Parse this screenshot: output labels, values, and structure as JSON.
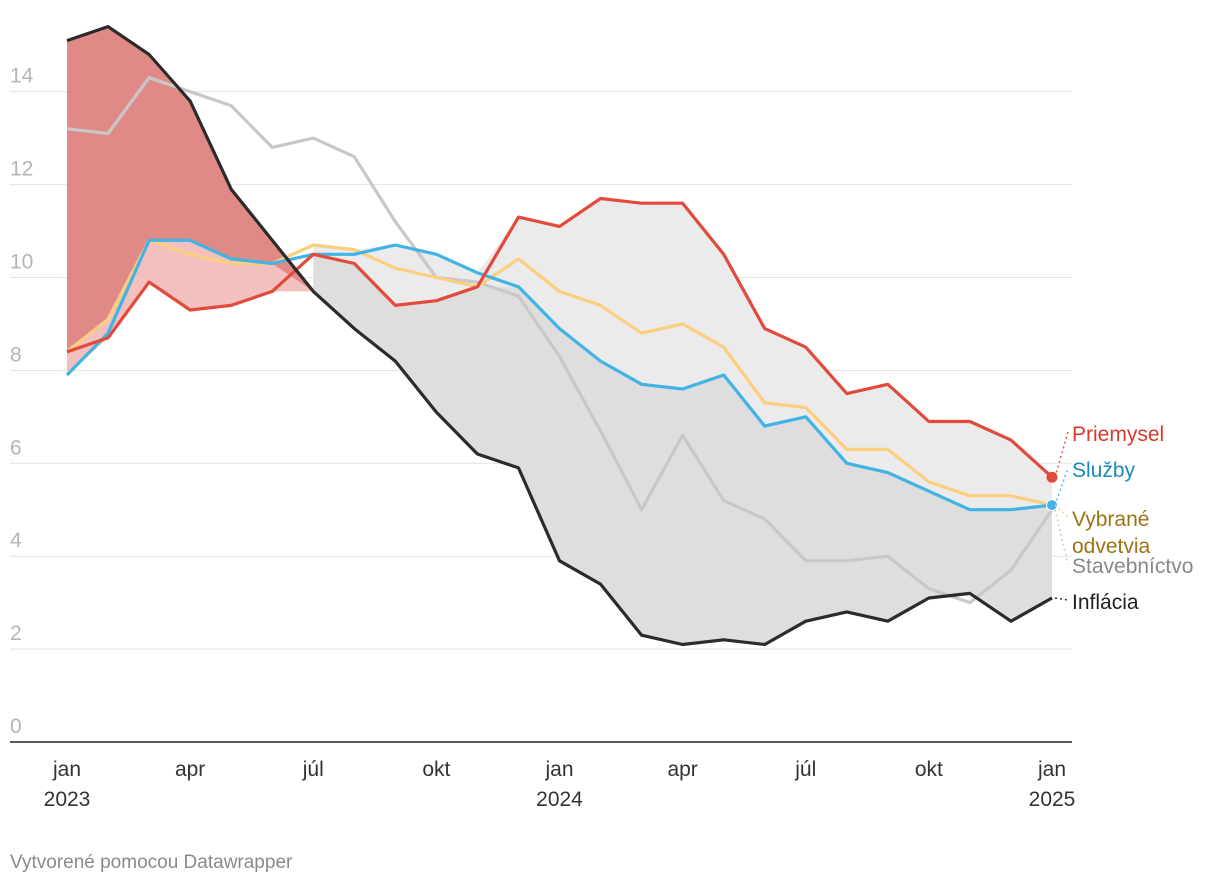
{
  "chart_data": {
    "type": "line",
    "x": [
      "2023-01",
      "2023-02",
      "2023-03",
      "2023-04",
      "2023-05",
      "2023-06",
      "2023-07",
      "2023-08",
      "2023-09",
      "2023-10",
      "2023-11",
      "2023-12",
      "2024-01",
      "2024-02",
      "2024-03",
      "2024-04",
      "2024-05",
      "2024-06",
      "2024-07",
      "2024-08",
      "2024-09",
      "2024-10",
      "2024-11",
      "2024-12",
      "2025-01"
    ],
    "x_tick_labels": [
      {
        "index": 0,
        "label": "jan",
        "year": "2023"
      },
      {
        "index": 3,
        "label": "apr",
        "year": ""
      },
      {
        "index": 6,
        "label": "júl",
        "year": ""
      },
      {
        "index": 9,
        "label": "okt",
        "year": ""
      },
      {
        "index": 12,
        "label": "jan",
        "year": "2024"
      },
      {
        "index": 15,
        "label": "apr",
        "year": ""
      },
      {
        "index": 18,
        "label": "júl",
        "year": ""
      },
      {
        "index": 21,
        "label": "okt",
        "year": ""
      },
      {
        "index": 24,
        "label": "jan",
        "year": "2025"
      }
    ],
    "y_ticks": [
      "0",
      "2",
      "4",
      "6",
      "8",
      "10",
      "12",
      "14"
    ],
    "ylim": [
      0,
      15.5
    ],
    "grid": true,
    "series": [
      {
        "key": "stavebnictvo",
        "name": "Stavebníctvo",
        "color": "#c8c8c8",
        "label_color": "#888888",
        "values": [
          13.2,
          13.1,
          14.3,
          14.0,
          13.7,
          12.8,
          13.0,
          12.6,
          11.2,
          10.0,
          9.9,
          9.6,
          8.3,
          6.7,
          5.0,
          6.6,
          5.2,
          4.8,
          3.9,
          3.9,
          4.0,
          3.3,
          3.0,
          3.7,
          5.0
        ]
      },
      {
        "key": "vybrane",
        "name": "Vybrané odvetvia",
        "color": "#fbcf7d",
        "label_color": "#9b7413",
        "values": [
          8.4,
          9.1,
          10.8,
          10.5,
          10.3,
          10.3,
          10.7,
          10.6,
          10.2,
          10.0,
          9.8,
          10.4,
          9.7,
          9.4,
          8.8,
          9.0,
          8.5,
          7.3,
          7.2,
          6.3,
          6.3,
          5.6,
          5.3,
          5.3,
          5.1
        ]
      },
      {
        "key": "sluzby",
        "name": "Služby",
        "color": "#41b3e4",
        "label_color": "#1a8ab8",
        "values": [
          7.9,
          8.8,
          10.8,
          10.8,
          10.4,
          10.3,
          10.5,
          10.5,
          10.7,
          10.5,
          10.1,
          9.8,
          8.9,
          8.2,
          7.7,
          7.6,
          7.9,
          6.8,
          7.0,
          6.0,
          5.8,
          5.4,
          5.0,
          5.0,
          5.1
        ]
      },
      {
        "key": "priemysel",
        "name": "Priemysel",
        "color": "#e24a3b",
        "label_color": "#d9392b",
        "values": [
          8.4,
          8.7,
          9.9,
          9.3,
          9.4,
          9.7,
          10.5,
          10.3,
          9.4,
          9.5,
          9.8,
          11.3,
          11.1,
          11.7,
          11.6,
          11.6,
          10.5,
          8.9,
          8.5,
          7.5,
          7.7,
          6.9,
          6.9,
          6.5,
          5.7
        ]
      },
      {
        "key": "inflacia",
        "name": "Inflácia",
        "color": "#2b2b2b",
        "label_color": "#222222",
        "values": [
          15.1,
          15.4,
          14.8,
          13.8,
          11.9,
          10.8,
          9.7,
          8.9,
          8.2,
          7.1,
          6.2,
          5.9,
          3.9,
          3.4,
          2.3,
          2.1,
          2.2,
          2.1,
          2.6,
          2.8,
          2.6,
          3.1,
          3.2,
          2.6,
          3.1
        ]
      }
    ]
  },
  "footer": {
    "credit": "Vytvorené pomocou Datawrapper"
  }
}
